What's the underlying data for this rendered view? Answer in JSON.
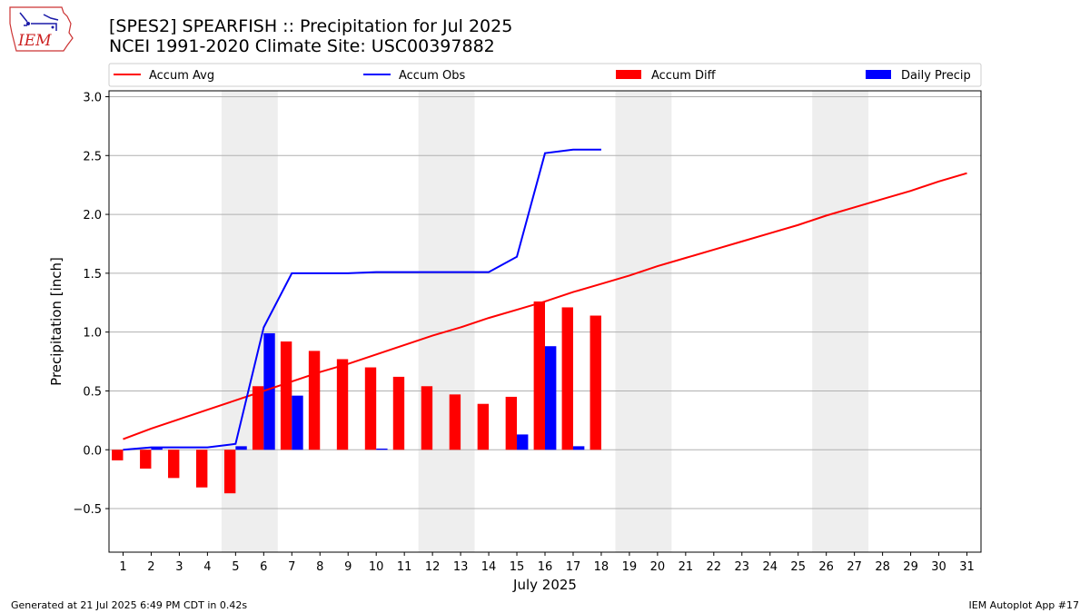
{
  "header": {
    "title_line1": "[SPES2] SPEARFISH :: Precipitation for Jul 2025",
    "title_line2": "NCEI 1991-2020 Climate Site: USC00397882"
  },
  "logo": {
    "text": "IEM"
  },
  "footer": {
    "left": "Generated at 21 Jul 2025 6:49 PM CDT in 0.42s",
    "right": "IEM Autoplot App #17"
  },
  "colors": {
    "avg": "#ff0000",
    "obs": "#0000ff",
    "diff": "#ff0000",
    "daily": "#0000ff",
    "weekend": "#eeeeee",
    "grid": "#b0b0b0"
  },
  "chart_data": {
    "type": "bar",
    "xlabel": "July 2025",
    "ylabel": "Precipitation [inch]",
    "xlim": [
      0.5,
      31.5
    ],
    "ylim": [
      -0.87,
      3.05
    ],
    "yticks": [
      -0.5,
      0.0,
      0.5,
      1.0,
      1.5,
      2.0,
      2.5,
      3.0
    ],
    "ytick_labels": [
      "−0.5",
      "0.0",
      "0.5",
      "1.0",
      "1.5",
      "2.0",
      "2.5",
      "3.0"
    ],
    "days": [
      1,
      2,
      3,
      4,
      5,
      6,
      7,
      8,
      9,
      10,
      11,
      12,
      13,
      14,
      15,
      16,
      17,
      18,
      19,
      20,
      21,
      22,
      23,
      24,
      25,
      26,
      27,
      28,
      29,
      30,
      31
    ],
    "weekend_spans": [
      [
        4.5,
        6.5
      ],
      [
        11.5,
        13.5
      ],
      [
        18.5,
        20.5
      ],
      [
        25.5,
        27.5
      ]
    ],
    "grid": true,
    "legend_position": "top",
    "legend": [
      {
        "label": "Accum Avg",
        "kind": "line",
        "color": "#ff0000"
      },
      {
        "label": "Accum Obs",
        "kind": "line",
        "color": "#0000ff"
      },
      {
        "label": "Accum Diff",
        "kind": "bar",
        "color": "#ff0000"
      },
      {
        "label": "Daily Precip",
        "kind": "bar",
        "color": "#0000ff"
      }
    ],
    "series": [
      {
        "name": "Accum Avg",
        "type": "line",
        "values": [
          0.09,
          0.18,
          0.26,
          0.34,
          0.42,
          0.5,
          0.58,
          0.66,
          0.73,
          0.81,
          0.89,
          0.97,
          1.04,
          1.12,
          1.19,
          1.26,
          1.34,
          1.41,
          1.48,
          1.56,
          1.63,
          1.7,
          1.77,
          1.84,
          1.91,
          1.99,
          2.06,
          2.13,
          2.2,
          2.28,
          2.35
        ]
      },
      {
        "name": "Accum Obs",
        "type": "line",
        "values": [
          0.0,
          0.02,
          0.02,
          0.02,
          0.05,
          1.04,
          1.5,
          1.5,
          1.5,
          1.51,
          1.51,
          1.51,
          1.51,
          1.51,
          1.64,
          2.52,
          2.55,
          2.55
        ]
      },
      {
        "name": "Accum Diff",
        "type": "bar",
        "values": [
          -0.09,
          -0.16,
          -0.24,
          -0.32,
          -0.37,
          0.54,
          0.92,
          0.84,
          0.77,
          0.7,
          0.62,
          0.54,
          0.47,
          0.39,
          0.45,
          1.26,
          1.21,
          1.14
        ]
      },
      {
        "name": "Daily Precip",
        "type": "bar",
        "values": [
          0.0,
          0.02,
          0.0,
          0.0,
          0.03,
          0.99,
          0.46,
          0.0,
          0.0,
          0.01,
          0.0,
          0.0,
          0.0,
          0.0,
          0.13,
          0.88,
          0.03,
          0.0
        ]
      }
    ]
  }
}
